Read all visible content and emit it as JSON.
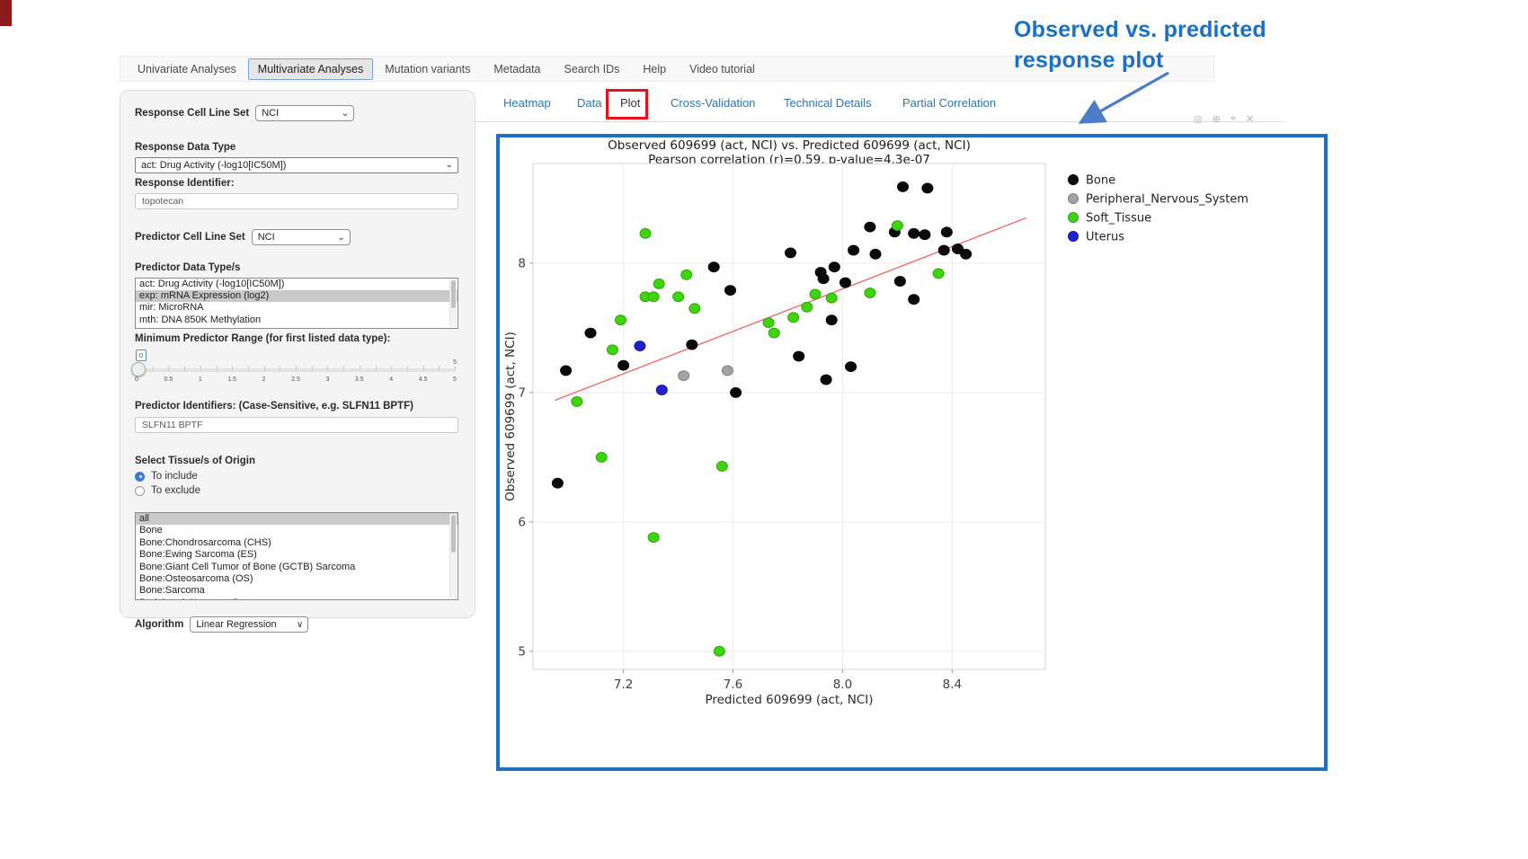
{
  "nav": {
    "items": [
      "Univariate Analyses",
      "Multivariate Analyses",
      "Mutation variants",
      "Metadata",
      "Search IDs",
      "Help",
      "Video tutorial"
    ],
    "active": "Multivariate Analyses"
  },
  "annotation": {
    "line1": "Observed  vs. predicted",
    "line2": "response plot"
  },
  "sidebar": {
    "response_cell_line_set_label": "Response Cell Line Set",
    "response_cell_line_set_value": "NCI",
    "response_data_type_label": "Response Data Type",
    "response_data_type_value": "act: Drug Activity (-log10[IC50M])",
    "response_identifier_label": "Response Identifier:",
    "response_identifier_value": "topotecan",
    "predictor_cell_line_set_label": "Predictor Cell Line Set",
    "predictor_cell_line_set_value": "NCI",
    "predictor_data_types_label": "Predictor Data Type/s",
    "predictor_data_types": {
      "options": [
        "act: Drug Activity (-log10[IC50M])",
        "exp: mRNA Expression (log2)",
        "mir: MicroRNA",
        "mth: DNA 850K Methylation"
      ],
      "selected": "exp: mRNA Expression (log2)"
    },
    "min_predictor_range_label": "Minimum Predictor Range (for first listed data type):",
    "slider": {
      "value": "0",
      "ticks": [
        "0",
        "0.5",
        "1",
        "1.5",
        "2",
        "2.5",
        "3",
        "3.5",
        "4",
        "4.5",
        "5"
      ],
      "max_label": "5"
    },
    "predictor_identifiers_label": "Predictor Identifiers: (Case-Sensitive, e.g. SLFN11 BPTF)",
    "predictor_identifiers_value": "SLFN11 BPTF",
    "tissue_label": "Select Tissue/s of Origin",
    "radio_include": "To include",
    "radio_exclude": "To exclude",
    "radio_selected": "To include",
    "tissues": {
      "options": [
        "all",
        "Bone",
        "Bone:Chondrosarcoma (CHS)",
        "Bone:Ewing Sarcoma (ES)",
        "Bone:Giant Cell Tumor of Bone (GCTB) Sarcoma",
        "Bone:Osteosarcoma (OS)",
        "Bone:Sarcoma",
        "Peripheral_Nervous_System"
      ],
      "selected": "all"
    },
    "algorithm_label": "Algorithm",
    "algorithm_value": "Linear Regression"
  },
  "subtabs": {
    "items": [
      "Heatmap",
      "Data",
      "Plot",
      "Cross-Validation",
      "Technical Details",
      "Partial Correlation"
    ],
    "active": "Plot"
  },
  "modebar_icons": [
    "camera-icon",
    "zoom-icon",
    "crosshair-icon",
    "close-icon"
  ],
  "modebar_glyphs": [
    "◎",
    "⊕",
    "⌖",
    "✕"
  ],
  "chart_data": {
    "type": "scatter",
    "title": "Observed 609699 (act, NCI) vs. Predicted 609699 (act, NCI)",
    "subtitle": "Pearson correlation (r)=0.59, p-value=4.3e-07",
    "xlabel": "Predicted 609699 (act, NCI)",
    "ylabel": "Observed 609699 (act, NCI)",
    "x_ticks": [
      7.2,
      7.6,
      8.0,
      8.4
    ],
    "y_ticks": [
      5,
      6,
      7,
      8
    ],
    "xlim": [
      6.87,
      8.74
    ],
    "ylim": [
      4.86,
      8.77
    ],
    "grid": true,
    "legend_position": "right-top",
    "series": [
      {
        "name": "Bone",
        "color": "#0a0a0a",
        "stroke": "#000000",
        "points": [
          [
            8.22,
            8.59
          ],
          [
            8.31,
            8.58
          ],
          [
            8.1,
            8.28
          ],
          [
            8.19,
            8.24
          ],
          [
            8.26,
            8.23
          ],
          [
            8.3,
            8.22
          ],
          [
            8.38,
            8.24
          ],
          [
            8.37,
            8.1
          ],
          [
            8.42,
            8.11
          ],
          [
            8.45,
            8.07
          ],
          [
            7.81,
            8.08
          ],
          [
            8.04,
            8.1
          ],
          [
            8.12,
            8.07
          ],
          [
            7.53,
            7.97
          ],
          [
            7.92,
            7.93
          ],
          [
            7.97,
            7.97
          ],
          [
            7.93,
            7.88
          ],
          [
            8.01,
            7.85
          ],
          [
            8.21,
            7.86
          ],
          [
            7.59,
            7.79
          ],
          [
            8.26,
            7.72
          ],
          [
            7.96,
            7.56
          ],
          [
            7.84,
            7.28
          ],
          [
            8.03,
            7.2
          ],
          [
            7.94,
            7.1
          ],
          [
            7.45,
            7.37
          ],
          [
            7.08,
            7.46
          ],
          [
            7.2,
            7.21
          ],
          [
            6.99,
            7.17
          ],
          [
            7.61,
            7.0
          ],
          [
            6.96,
            6.3
          ]
        ]
      },
      {
        "name": "Peripheral_Nervous_System",
        "color": "#a3a3a3",
        "stroke": "#7d7d7d",
        "points": [
          [
            7.42,
            7.13
          ],
          [
            7.58,
            7.17
          ]
        ]
      },
      {
        "name": "Soft_Tissue",
        "color": "#3ed40e",
        "stroke": "#2da40a",
        "points": [
          [
            7.28,
            8.23
          ],
          [
            8.2,
            8.29
          ],
          [
            8.35,
            7.92
          ],
          [
            7.43,
            7.91
          ],
          [
            7.33,
            7.84
          ],
          [
            7.28,
            7.74
          ],
          [
            7.31,
            7.74
          ],
          [
            7.4,
            7.74
          ],
          [
            7.46,
            7.65
          ],
          [
            7.19,
            7.56
          ],
          [
            7.9,
            7.76
          ],
          [
            7.96,
            7.73
          ],
          [
            8.1,
            7.77
          ],
          [
            7.87,
            7.66
          ],
          [
            7.82,
            7.58
          ],
          [
            7.73,
            7.54
          ],
          [
            7.75,
            7.46
          ],
          [
            7.16,
            7.33
          ],
          [
            7.03,
            6.93
          ],
          [
            7.12,
            6.5
          ],
          [
            7.56,
            6.43
          ],
          [
            7.31,
            5.88
          ],
          [
            7.55,
            5.0
          ]
        ]
      },
      {
        "name": "Uterus",
        "color": "#2222cc",
        "stroke": "#1414a8",
        "points": [
          [
            7.26,
            7.36
          ],
          [
            7.34,
            7.02
          ]
        ]
      }
    ],
    "trendline": {
      "color": "#f56b6b",
      "x1": 6.95,
      "y1": 6.94,
      "x2": 8.67,
      "y2": 8.35
    }
  },
  "colors": {
    "accent_blue": "#1d6fbf",
    "tab_link": "#2d76ae",
    "red_highlight": "#e8111a"
  }
}
